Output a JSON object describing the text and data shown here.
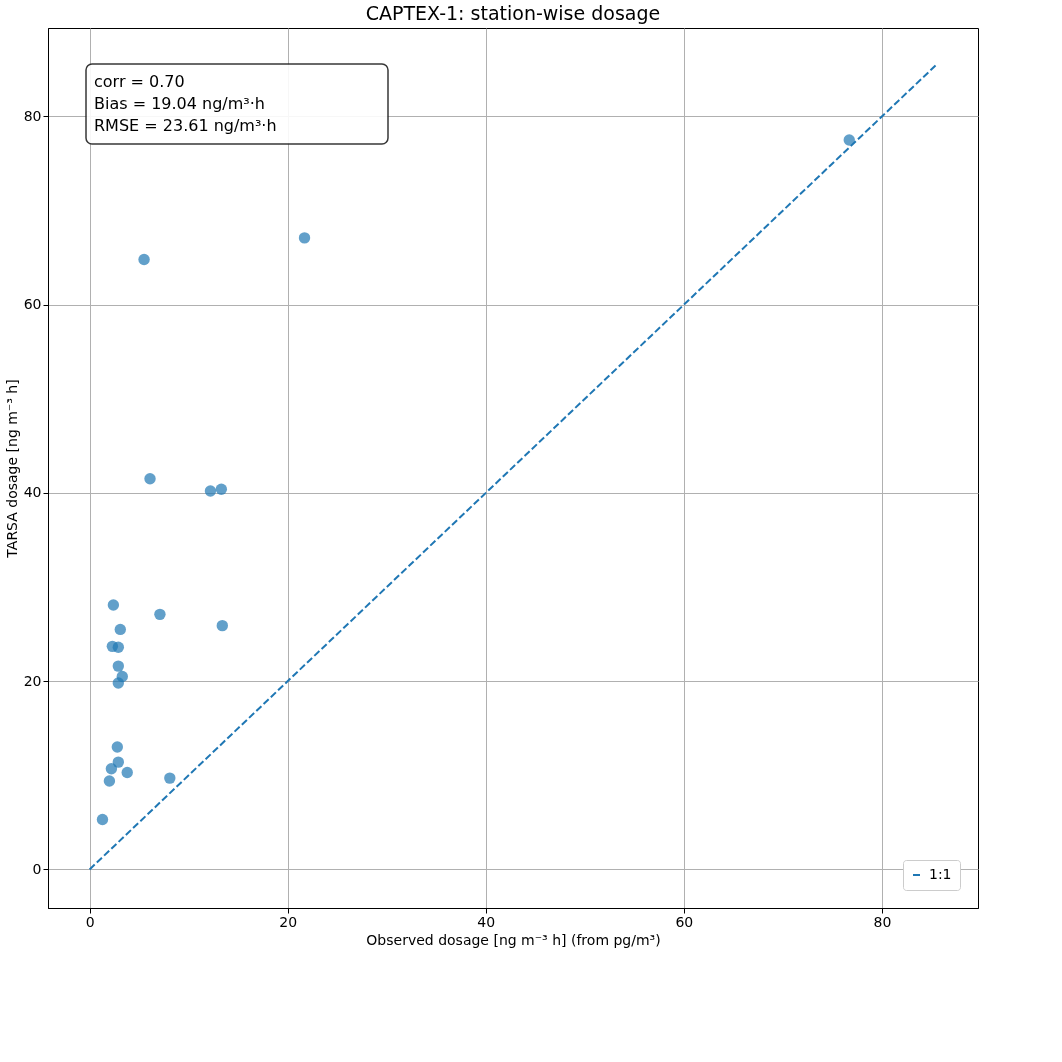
{
  "chart_data": {
    "type": "scatter",
    "title": "CAPTEX-1: station-wise dosage",
    "xlabel": "Observed dosage [ng m⁻³ h] (from pg/m³)",
    "ylabel": "TARSA dosage [ng m⁻³ h]",
    "xlim": [
      -4.2,
      89.7
    ],
    "ylim": [
      -4.1,
      89.4
    ],
    "xticks": [
      0,
      20,
      40,
      60,
      80
    ],
    "yticks": [
      0,
      20,
      40,
      60,
      80
    ],
    "grid": true,
    "legend": "bottom right",
    "annotations": [
      "corr = 0.70",
      "Bias = 19.04 ng/m³·h",
      "RMSE = 23.61 ng/m³·h"
    ],
    "series": [
      {
        "color": "#1f77b4",
        "marker": "circle",
        "x": [
          2.4,
          7.1,
          13.4,
          3.1,
          2.3,
          2.9,
          2.9,
          3.3,
          2.9,
          2.8,
          2.9,
          2.2,
          3.8,
          2.0,
          8.1,
          1.3,
          5.5,
          21.7,
          76.7,
          6.1,
          12.2,
          13.3
        ],
        "values": [
          28.1,
          27.1,
          25.9,
          25.5,
          23.7,
          23.6,
          21.6,
          20.5,
          19.8,
          13.0,
          11.4,
          10.7,
          10.3,
          9.4,
          9.7,
          5.3,
          64.8,
          67.1,
          77.5,
          41.5,
          40.2,
          40.4
        ]
      },
      {
        "type": "line",
        "name": "1:1",
        "color": "#1f77b4",
        "line_style": "dashed",
        "marker": "none",
        "x": [
          0,
          85.5
        ],
        "values": [
          0,
          85.5
        ]
      }
    ]
  }
}
